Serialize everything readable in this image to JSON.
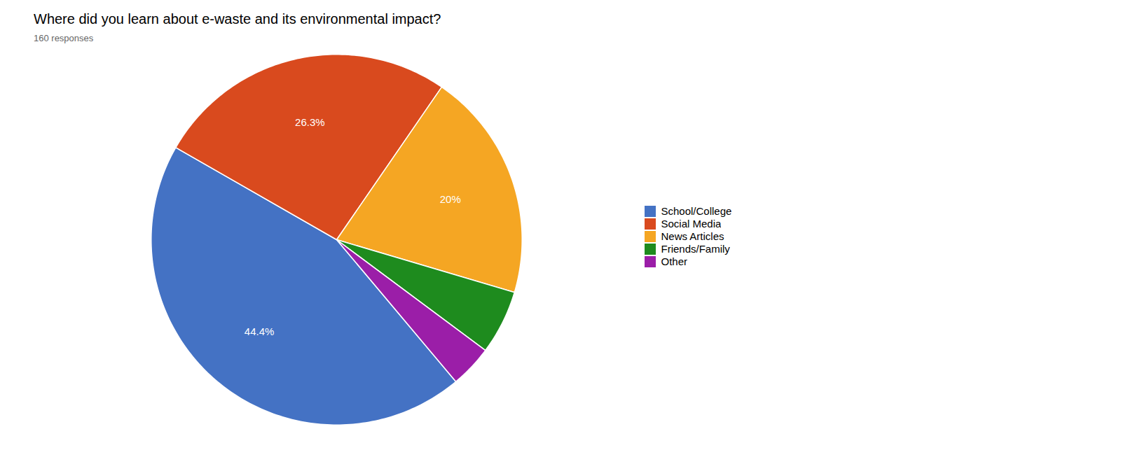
{
  "chart_data": {
    "type": "pie",
    "title": "Where did you learn about e-waste and its environmental impact?",
    "subtitle": "160 responses",
    "categories": [
      "School/College",
      "Social Media",
      "News Articles",
      "Friends/Family",
      "Other"
    ],
    "values": [
      44.4,
      26.3,
      20.0,
      5.6,
      3.7
    ],
    "value_labels": [
      "44.4%",
      "26.3%",
      "20%",
      null,
      null
    ],
    "colors": [
      "#4472C4",
      "#D94A1E",
      "#F5A623",
      "#1E8B1E",
      "#9B1EA8"
    ],
    "data_labels": true,
    "legend": "right"
  }
}
